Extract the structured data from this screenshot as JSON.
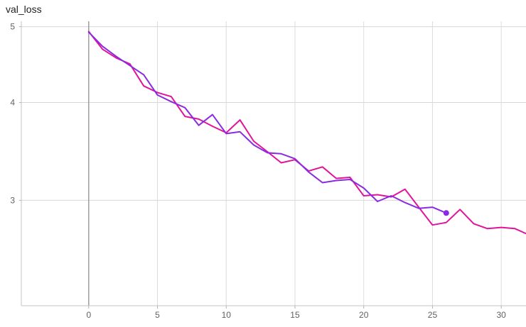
{
  "chart_data": {
    "type": "line",
    "title": "val_loss",
    "xlabel": "",
    "ylabel": "",
    "x_ticks": [
      0,
      5,
      10,
      15,
      20,
      25,
      30
    ],
    "y_ticks": [
      3,
      4,
      5
    ],
    "xlim": [
      -4.9,
      31.8
    ],
    "ylim": [
      2.2,
      5.08
    ],
    "y_scale": "log",
    "grid": true,
    "series": [
      {
        "color": "#8a2be2",
        "x": [
          0,
          1,
          2,
          3,
          4,
          5,
          6,
          7,
          8,
          9,
          10,
          11,
          12,
          13,
          14,
          15,
          16,
          17,
          18,
          19,
          20,
          21,
          22,
          23,
          24,
          25,
          26
        ],
        "values": [
          4.92,
          4.72,
          4.58,
          4.46,
          4.34,
          4.09,
          4.01,
          3.94,
          3.74,
          3.86,
          3.65,
          3.67,
          3.53,
          3.45,
          3.44,
          3.39,
          3.26,
          3.16,
          3.18,
          3.19,
          3.11,
          2.99,
          3.04,
          2.98,
          2.93,
          2.94,
          2.89
        ],
        "end_marker": true
      },
      {
        "color": "#e0149c",
        "x": [
          0,
          1,
          2,
          3,
          4,
          5,
          6,
          7,
          8,
          9,
          10,
          11,
          12,
          13,
          14,
          15,
          16,
          17,
          18,
          19,
          20,
          21,
          22,
          23,
          24,
          25,
          26,
          27,
          28,
          29,
          30,
          31,
          32
        ],
        "values": [
          4.93,
          4.68,
          4.56,
          4.48,
          4.2,
          4.12,
          4.07,
          3.84,
          3.81,
          3.73,
          3.66,
          3.8,
          3.57,
          3.46,
          3.35,
          3.38,
          3.27,
          3.31,
          3.2,
          3.21,
          3.04,
          3.05,
          3.03,
          3.1,
          2.94,
          2.79,
          2.81,
          2.92,
          2.8,
          2.76,
          2.77,
          2.76,
          2.71
        ]
      }
    ]
  }
}
